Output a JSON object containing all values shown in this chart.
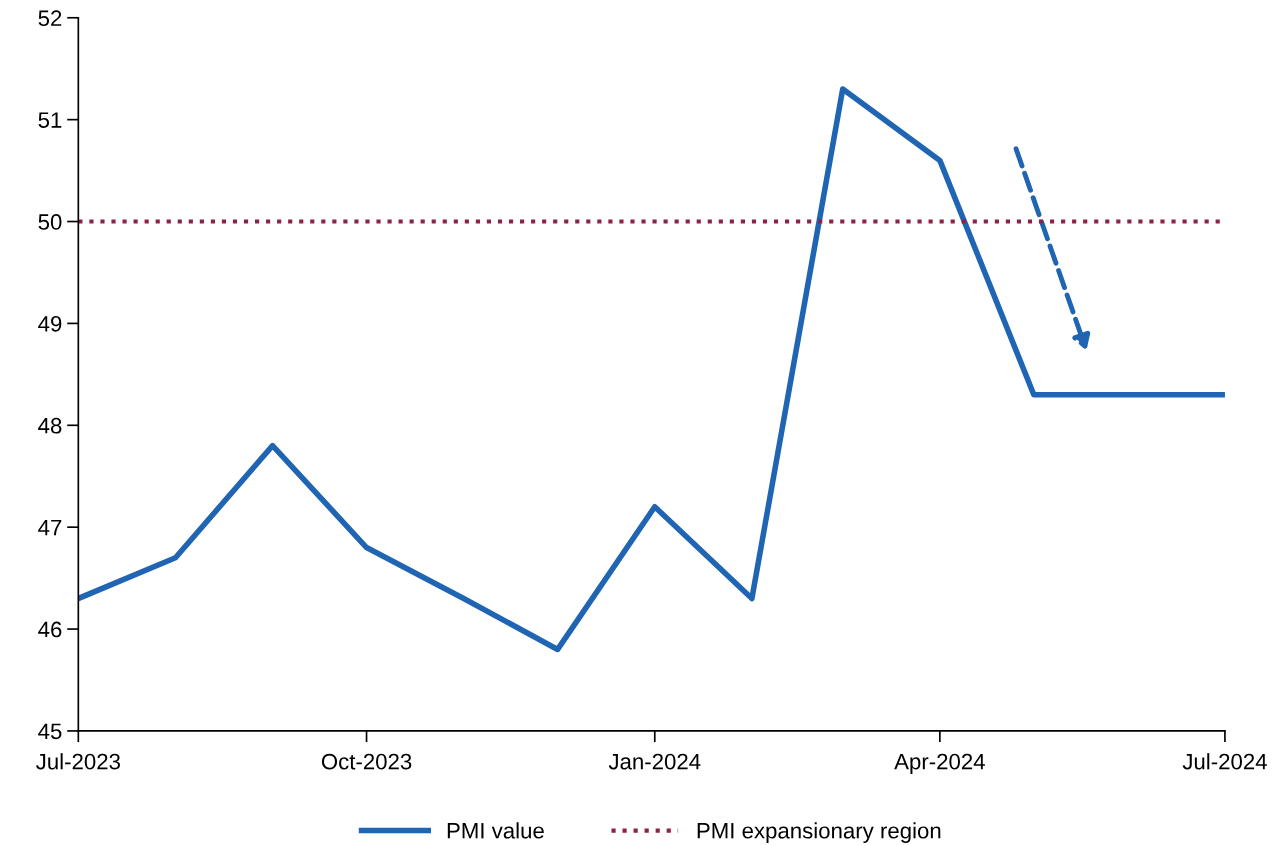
{
  "chart_data": {
    "type": "line",
    "x": [
      "2023-07",
      "2023-08",
      "2023-09",
      "2023-10",
      "2023-11",
      "2023-12",
      "2024-01",
      "2024-02",
      "2024-03",
      "2024-04",
      "2024-05",
      "2024-06",
      "2024-07"
    ],
    "series": [
      {
        "name": "PMI value",
        "color": "#1f65b3",
        "values": [
          46.3,
          46.7,
          47.8,
          46.8,
          46.3,
          45.8,
          47.2,
          46.3,
          51.3,
          50.6,
          48.3,
          48.3,
          48.3
        ]
      }
    ],
    "ref_lines": [
      {
        "axis": "y",
        "value": 50,
        "label": "PMI expansionary region",
        "color": "#8b2346",
        "line_style": "dotted"
      }
    ],
    "xlim": [
      "2023-07",
      "2024-07"
    ],
    "xticks": [
      {
        "value": "2023-07",
        "label": "Jul-2023"
      },
      {
        "value": "2023-10",
        "label": "Oct-2023"
      },
      {
        "value": "2024-01",
        "label": "Jan-2024"
      },
      {
        "value": "2024-04",
        "label": "Apr-2024"
      },
      {
        "value": "2024-07",
        "label": "Jul-2024"
      }
    ],
    "ylim": [
      45,
      52
    ],
    "yticks": [
      45,
      46,
      47,
      48,
      49,
      50,
      51,
      52
    ],
    "grid": false,
    "legend": "bottom",
    "marker": "none",
    "line_style": "solid"
  }
}
